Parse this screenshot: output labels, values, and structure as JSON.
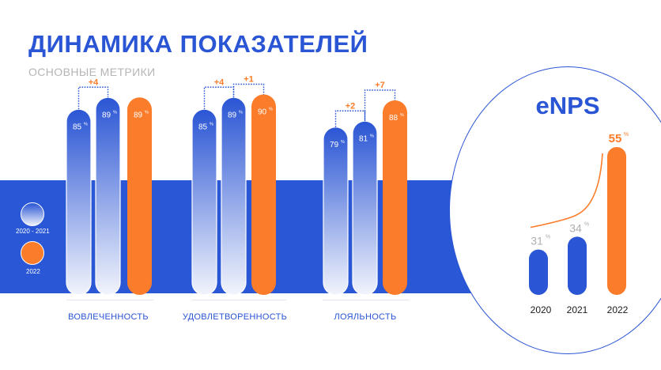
{
  "header": {
    "title": "ДИНАМИКА ПОКАЗАТЕЛЕЙ",
    "subtitle": "ОСНОВНЫЕ МЕТРИКИ"
  },
  "legend": {
    "items": [
      {
        "label": "2020 - 2021",
        "style": "gradient"
      },
      {
        "label": "2022",
        "style": "orange"
      }
    ]
  },
  "colors": {
    "blue": "#2a55d4",
    "band": "#2a57d6",
    "orange": "#fb7c2a",
    "gray": "#aeaeae"
  },
  "chart_data": [
    {
      "type": "bar",
      "title": "",
      "ylim": [
        0,
        100
      ],
      "unit": "%",
      "categories": [
        "ВОВЛЕЧЕННОСТЬ",
        "УДОВЛЕТВОРЕННОСТЬ",
        "ЛОЯЛЬНОСТЬ"
      ],
      "series": [
        {
          "values": [
            85,
            85,
            79
          ]
        },
        {
          "values": [
            89,
            89,
            81
          ]
        },
        {
          "name": "2022",
          "values": [
            89,
            90,
            88
          ]
        }
      ],
      "annotations": [
        {
          "category": "ВОВЛЕЧЕННОСТЬ",
          "from": 0,
          "to": 1,
          "text": "+4"
        },
        {
          "category": "УДОВЛЕТВОРЕННОСТЬ",
          "from": 0,
          "to": 1,
          "text": "+4"
        },
        {
          "category": "УДОВЛЕТВОРЕННОСТЬ",
          "from": 1,
          "to": 2,
          "text": "+1"
        },
        {
          "category": "ЛОЯЛЬНОСТЬ",
          "from": 0,
          "to": 1,
          "text": "+2"
        },
        {
          "category": "ЛОЯЛЬНОСТЬ",
          "from": 1,
          "to": 2,
          "text": "+7"
        }
      ]
    },
    {
      "type": "bar",
      "title": "eNPS",
      "unit": "%",
      "categories": [
        "2020",
        "2021",
        "2022"
      ],
      "values": [
        31,
        34,
        55
      ]
    }
  ]
}
